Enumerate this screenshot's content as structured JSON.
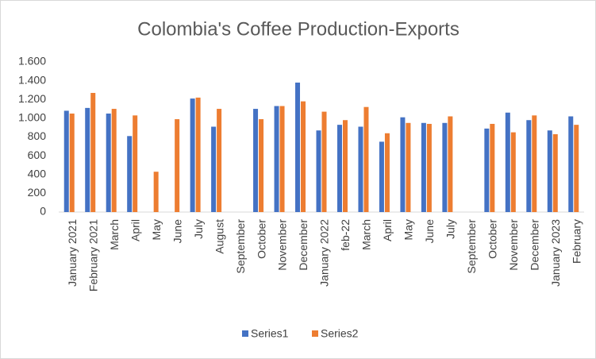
{
  "chart_data": {
    "type": "bar",
    "title": "Colombia's Coffee Production-Exports",
    "categories": [
      "January 2021",
      "February 2021",
      "March",
      "April",
      "May",
      "June",
      "July",
      "August",
      "September",
      "October",
      "November",
      "December",
      "January 2022",
      "feb-22",
      "March",
      "April",
      "May",
      "June",
      "July",
      "September",
      "October",
      "November",
      "December",
      "January 2023",
      "February"
    ],
    "series": [
      {
        "name": "Series1",
        "color": "#4472c4",
        "values": [
          1080,
          1110,
          1050,
          810,
          null,
          null,
          1210,
          910,
          null,
          1100,
          1130,
          1380,
          870,
          930,
          910,
          750,
          1010,
          950,
          950,
          null,
          890,
          1060,
          980,
          870,
          1020
        ]
      },
      {
        "name": "Series2",
        "color": "#ed7d31",
        "values": [
          1050,
          1270,
          1100,
          1030,
          430,
          990,
          1220,
          1100,
          null,
          990,
          1130,
          1180,
          1070,
          980,
          1120,
          840,
          950,
          940,
          1020,
          null,
          940,
          850,
          1030,
          830,
          930
        ]
      }
    ],
    "ylim": [
      0,
      1600
    ],
    "yticks": [
      0,
      200,
      400,
      600,
      800,
      {
        "value": 1000,
        "label": "1.000"
      },
      {
        "value": 1200,
        "label": "1.200"
      },
      {
        "value": 1400,
        "label": "1.400"
      },
      {
        "value": 1600,
        "label": "1.600"
      }
    ],
    "grid": false,
    "legend": "bottom"
  }
}
